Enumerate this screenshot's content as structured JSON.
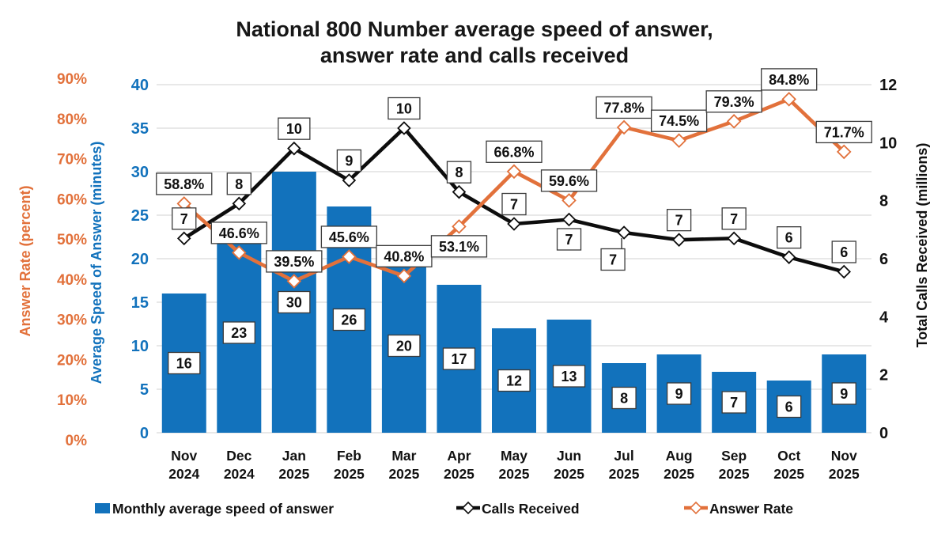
{
  "title": {
    "line1": "National 800 Number average speed of answer,",
    "line2": "answer rate and calls received"
  },
  "axes": {
    "answer_rate": {
      "title": "Answer Rate (percent)",
      "ticks": [
        "0%",
        "10%",
        "20%",
        "30%",
        "40%",
        "50%",
        "60%",
        "70%",
        "80%",
        "90%"
      ],
      "color": "#E2713B"
    },
    "speed": {
      "title": "Average Speed of Answer (minutes)",
      "ticks": [
        "0",
        "5",
        "10",
        "15",
        "20",
        "25",
        "30",
        "35",
        "40"
      ],
      "color": "#1272BC"
    },
    "calls": {
      "title": "Total Calls Received (millions)",
      "ticks": [
        "0",
        "2",
        "4",
        "6",
        "8",
        "10",
        "12"
      ],
      "color": "#111111"
    }
  },
  "chart_data": {
    "type": "combo bar + two lines",
    "title": "National 800 Number average speed of answer, answer rate and calls received",
    "categories": [
      {
        "month": "Nov",
        "year": "2024"
      },
      {
        "month": "Dec",
        "year": "2024"
      },
      {
        "month": "Jan",
        "year": "2025"
      },
      {
        "month": "Feb",
        "year": "2025"
      },
      {
        "month": "Mar",
        "year": "2025"
      },
      {
        "month": "Apr",
        "year": "2025"
      },
      {
        "month": "May",
        "year": "2025"
      },
      {
        "month": "Jun",
        "year": "2025"
      },
      {
        "month": "Jul",
        "year": "2025"
      },
      {
        "month": "Aug",
        "year": "2025"
      },
      {
        "month": "Sep",
        "year": "2025"
      },
      {
        "month": "Oct",
        "year": "2025"
      },
      {
        "month": "Nov",
        "year": "2025"
      }
    ],
    "axis_ranges": {
      "minutes": [
        0,
        40
      ],
      "percent": [
        0,
        90
      ],
      "millions": [
        0,
        12
      ]
    },
    "grid": true,
    "legend_position": "bottom",
    "series": [
      {
        "name": "Monthly average speed of answer",
        "type": "bar",
        "axis": "minutes",
        "color": "#1272BC",
        "values": [
          16,
          23,
          30,
          26,
          20,
          17,
          12,
          13,
          8,
          9,
          7,
          6,
          9
        ],
        "labels": [
          "16",
          "23",
          "30",
          "26",
          "20",
          "17",
          "12",
          "13",
          "8",
          "9",
          "7",
          "6",
          "9"
        ]
      },
      {
        "name": "Calls Received",
        "type": "line",
        "axis": "millions",
        "color": "#0D0D0D",
        "values": [
          7,
          8,
          10,
          9,
          10,
          8,
          7,
          7,
          7,
          7,
          7,
          6,
          6
        ],
        "labels": [
          "7",
          "8",
          "10",
          "9",
          "10",
          "8",
          "7",
          "7",
          "7",
          "7",
          "7",
          "6",
          "6"
        ],
        "plot_values": [
          6.7,
          7.9,
          9.8,
          8.7,
          10.5,
          8.3,
          7.2,
          7.35,
          6.9,
          6.65,
          6.7,
          6.05,
          5.55
        ],
        "labels_below_at": [
          7
        ],
        "label_offsets": {
          "8": {
            "dx": -14,
            "dy": 34,
            "leader": true
          }
        }
      },
      {
        "name": "Answer Rate",
        "type": "line",
        "axis": "percent",
        "color": "#E2713B",
        "values": [
          58.8,
          46.6,
          39.5,
          45.6,
          40.8,
          53.1,
          66.8,
          59.6,
          77.8,
          74.5,
          79.3,
          84.8,
          71.7
        ],
        "labels": [
          "58.8%",
          "46.6%",
          "39.5%",
          "45.6%",
          "40.8%",
          "53.1%",
          "66.8%",
          "59.6%",
          "77.8%",
          "74.5%",
          "79.3%",
          "84.8%",
          "71.7%"
        ],
        "labels_below_at": [
          5
        ]
      }
    ]
  },
  "legend": {
    "bar": "Monthly average speed of answer",
    "calls": "Calls Received",
    "rate": "Answer Rate"
  },
  "colors": {
    "bar_blue": "#1272BC",
    "line_black": "#0D0D0D",
    "line_orange": "#E2713B",
    "gridline": "#D9D9D9",
    "label_box_border": "#3A3A3A"
  }
}
